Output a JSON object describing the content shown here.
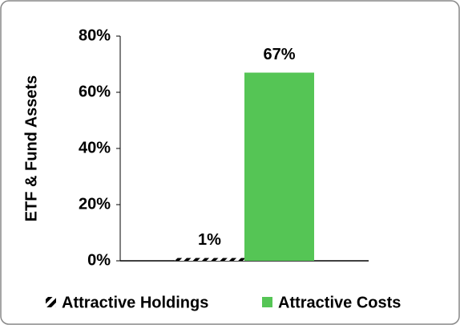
{
  "chart_data": {
    "type": "bar",
    "y_label": "ETF & Fund Assets",
    "categories": [
      null
    ],
    "series": [
      {
        "name": "Attractive Holdings",
        "color": "#000000",
        "pattern": "hatch",
        "values": [
          1
        ],
        "value_labels": [
          "1%"
        ]
      },
      {
        "name": "Attractive Costs",
        "color": "#55c555",
        "values": [
          67
        ],
        "value_labels": [
          "67%"
        ]
      }
    ],
    "ylim": [
      0,
      80
    ],
    "yticks": [
      {
        "value": 0,
        "label": "0%"
      },
      {
        "value": 20,
        "label": "20%"
      },
      {
        "value": 40,
        "label": "40%"
      },
      {
        "value": 60,
        "label": "60%"
      },
      {
        "value": 80,
        "label": "80%"
      }
    ],
    "grid": false,
    "legend": "bottom"
  }
}
